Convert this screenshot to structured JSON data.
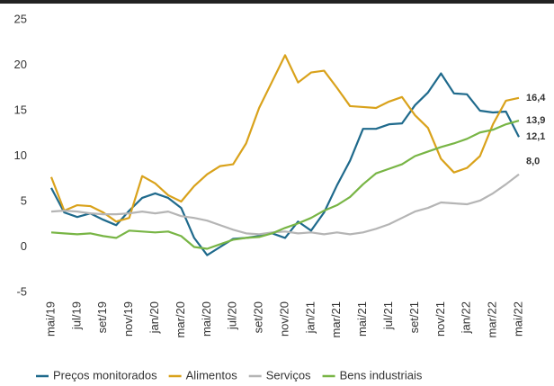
{
  "chart_data": {
    "type": "line",
    "categories": [
      "mai/19",
      null,
      "jul/19",
      null,
      "set/19",
      null,
      "nov/19",
      null,
      "jan/20",
      null,
      "mar/20",
      null,
      "mai/20",
      null,
      "jul/20",
      null,
      "set/20",
      null,
      "nov/20",
      null,
      "jan/21",
      null,
      "mar/21",
      null,
      "mai/21",
      null,
      "jul/21",
      null,
      "set/21",
      null,
      "nov/21",
      null,
      "jan/22",
      null,
      "mar/22",
      null,
      "mai/22"
    ],
    "series": [
      {
        "name": "Preços monitorados",
        "color": "#1f6a8c",
        "values": [
          6.5,
          3.8,
          3.3,
          3.7,
          3.0,
          2.4,
          4.0,
          5.4,
          5.9,
          5.4,
          4.3,
          1.0,
          -0.9,
          0.0,
          0.9,
          1.0,
          1.2,
          1.5,
          1.0,
          2.8,
          1.8,
          3.8,
          6.8,
          9.5,
          13.0,
          13.0,
          13.5,
          13.6,
          15.6,
          17.0,
          19.1,
          16.9,
          16.8,
          15.0,
          14.8,
          14.9,
          12.1
        ],
        "value_labels": [
          null,
          null,
          null,
          null,
          null,
          null,
          null,
          null,
          null,
          null,
          null,
          null,
          null,
          null,
          null,
          null,
          null,
          null,
          null,
          null,
          null,
          null,
          null,
          null,
          null,
          null,
          null,
          null,
          null,
          null,
          null,
          null,
          null,
          null,
          null,
          null,
          "12,1"
        ]
      },
      {
        "name": "Alimentos",
        "color": "#d9a21b",
        "values": [
          7.7,
          4.0,
          4.6,
          4.5,
          3.8,
          2.8,
          3.2,
          7.8,
          7.0,
          5.7,
          5.0,
          6.7,
          8.0,
          8.9,
          9.1,
          11.4,
          15.3,
          18.2,
          21.1,
          18.1,
          19.2,
          19.4,
          17.5,
          15.5,
          15.4,
          15.3,
          16.0,
          16.5,
          14.5,
          13.1,
          9.7,
          8.2,
          8.7,
          10.0,
          13.5,
          16.1,
          16.4
        ],
        "value_labels": [
          null,
          null,
          null,
          null,
          null,
          null,
          null,
          null,
          null,
          null,
          null,
          null,
          null,
          null,
          null,
          null,
          null,
          null,
          null,
          null,
          null,
          null,
          null,
          null,
          null,
          null,
          null,
          null,
          null,
          null,
          null,
          null,
          null,
          null,
          null,
          null,
          "16,4"
        ]
      },
      {
        "name": "Serviços",
        "color": "#b5b5b5",
        "values": [
          3.9,
          4.0,
          3.9,
          3.7,
          3.6,
          3.6,
          3.7,
          3.9,
          3.7,
          3.9,
          3.4,
          3.2,
          2.9,
          2.4,
          1.9,
          1.5,
          1.4,
          1.6,
          1.7,
          1.5,
          1.6,
          1.4,
          1.6,
          1.4,
          1.6,
          2.0,
          2.5,
          3.2,
          3.9,
          4.3,
          4.9,
          4.8,
          4.7,
          5.1,
          5.9,
          6.9,
          8.0
        ],
        "value_labels": [
          null,
          null,
          null,
          null,
          null,
          null,
          null,
          null,
          null,
          null,
          null,
          null,
          null,
          null,
          null,
          null,
          null,
          null,
          null,
          null,
          null,
          null,
          null,
          null,
          null,
          null,
          null,
          null,
          null,
          null,
          null,
          null,
          null,
          null,
          null,
          null,
          "8,0"
        ]
      },
      {
        "name": "Bens industriais",
        "color": "#78b545",
        "values": [
          1.6,
          1.5,
          1.4,
          1.5,
          1.2,
          1.0,
          1.8,
          1.7,
          1.6,
          1.7,
          1.2,
          0.0,
          -0.2,
          0.3,
          0.8,
          1.0,
          1.1,
          1.5,
          2.1,
          2.6,
          3.2,
          4.0,
          4.6,
          5.5,
          6.9,
          8.1,
          8.6,
          9.1,
          10.0,
          10.5,
          11.0,
          11.4,
          11.9,
          12.6,
          12.9,
          13.5,
          13.9
        ],
        "value_labels": [
          null,
          null,
          null,
          null,
          null,
          null,
          null,
          null,
          null,
          null,
          null,
          null,
          null,
          null,
          null,
          null,
          null,
          null,
          null,
          null,
          null,
          null,
          null,
          null,
          null,
          null,
          null,
          null,
          null,
          null,
          null,
          null,
          null,
          null,
          null,
          null,
          "13,9"
        ]
      }
    ],
    "ylim": [
      -5,
      25
    ],
    "yticks": [
      -5,
      0,
      5,
      10,
      15,
      20,
      25
    ],
    "grid": false
  }
}
